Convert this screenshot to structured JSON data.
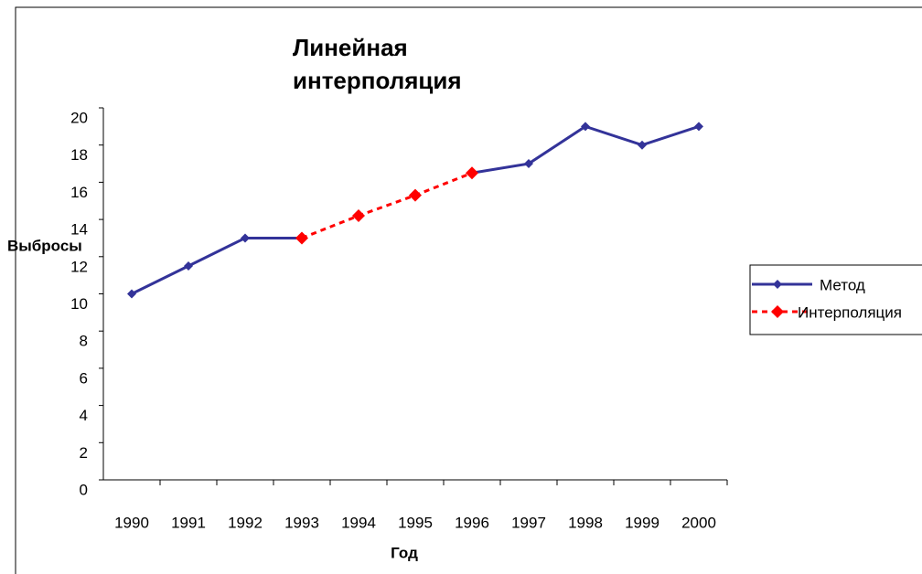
{
  "chart_data": {
    "type": "line",
    "title": "Линейная интерполяция",
    "x_label": "Год",
    "y_label": "Выбросы",
    "categories": [
      "1990",
      "1991",
      "1992",
      "1993",
      "1994",
      "1995",
      "1996",
      "1997",
      "1998",
      "1999",
      "2000"
    ],
    "series": [
      {
        "name": "Метод",
        "color": "#333399",
        "dashed": false,
        "values": [
          10,
          11.5,
          13,
          13,
          null,
          null,
          16.5,
          17,
          19,
          18,
          19
        ]
      },
      {
        "name": "Интерполяция",
        "color": "#ff0000",
        "dashed": true,
        "values": [
          null,
          null,
          null,
          13,
          14.2,
          15.3,
          16.5,
          null,
          null,
          null,
          null
        ]
      }
    ],
    "ylim": [
      0,
      20
    ],
    "yticks": [
      0,
      2,
      4,
      6,
      8,
      10,
      12,
      14,
      16,
      18,
      20
    ],
    "grid": false,
    "legend": "right"
  }
}
